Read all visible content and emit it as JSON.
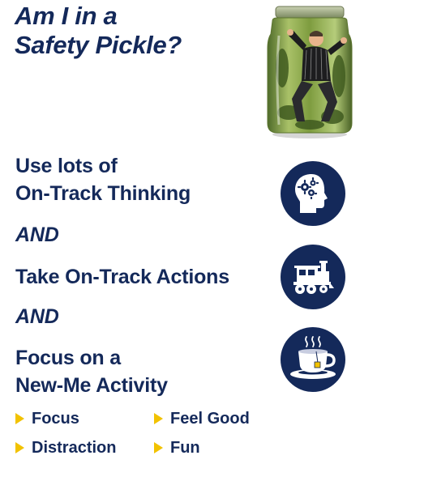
{
  "title": {
    "line1": "Am I in a",
    "line2": "Safety Pickle?"
  },
  "steps": {
    "thinking": {
      "line1": "Use lots of",
      "line2": "On-Track Thinking",
      "icon": "head-gears-icon"
    },
    "and1": "AND",
    "actions": {
      "line1": "Take On-Track Actions",
      "icon": "train-icon"
    },
    "and2": "AND",
    "activity": {
      "line1": "Focus on a",
      "line2": "New-Me Activity",
      "icon": "tea-cup-icon"
    }
  },
  "bullets": [
    "Focus",
    "Feel Good",
    "Distraction",
    "Fun"
  ],
  "colors": {
    "navy": "#14295a",
    "bullet_arrow": "#f2c200"
  },
  "image": {
    "icon": "man-in-pickle-jar-illustration"
  }
}
